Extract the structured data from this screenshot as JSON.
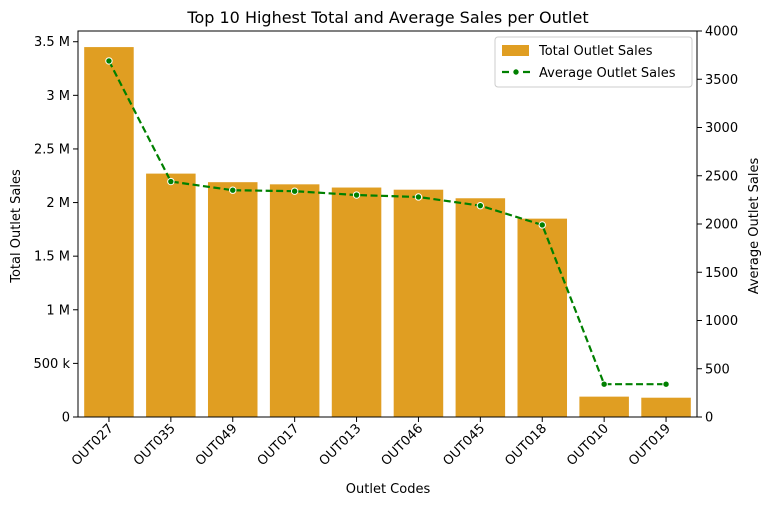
{
  "chart_data": {
    "type": "bar",
    "title": "Top 10 Highest Total and Average Sales per Outlet",
    "xlabel": "Outlet Codes",
    "ylabel": "Total Outlet Sales",
    "y2label": "Average Outlet Sales",
    "categories": [
      "OUT027",
      "OUT035",
      "OUT049",
      "OUT017",
      "OUT013",
      "OUT046",
      "OUT045",
      "OUT018",
      "OUT010",
      "OUT019"
    ],
    "ylim": [
      0,
      3600000
    ],
    "y2lim": [
      0,
      4000
    ],
    "y_ticks": [
      {
        "value": 0,
        "label": "0"
      },
      {
        "value": 500000,
        "label": "500 k"
      },
      {
        "value": 1000000,
        "label": "1 M"
      },
      {
        "value": 1500000,
        "label": "1.5 M"
      },
      {
        "value": 2000000,
        "label": "2 M"
      },
      {
        "value": 2500000,
        "label": "2.5 M"
      },
      {
        "value": 3000000,
        "label": "3 M"
      },
      {
        "value": 3500000,
        "label": "3.5 M"
      }
    ],
    "y2_ticks": [
      {
        "value": 0,
        "label": "0"
      },
      {
        "value": 500,
        "label": "500"
      },
      {
        "value": 1000,
        "label": "1000"
      },
      {
        "value": 1500,
        "label": "1500"
      },
      {
        "value": 2000,
        "label": "2000"
      },
      {
        "value": 2500,
        "label": "2500"
      },
      {
        "value": 3000,
        "label": "3000"
      },
      {
        "value": 3500,
        "label": "3500"
      },
      {
        "value": 4000,
        "label": "4000"
      }
    ],
    "series": [
      {
        "name": "Total Outlet Sales",
        "type": "bar",
        "axis": "left",
        "color": "#e09e22",
        "values": [
          3450000,
          2270000,
          2190000,
          2170000,
          2140000,
          2120000,
          2040000,
          1850000,
          190000,
          180000
        ]
      },
      {
        "name": "Average Outlet Sales",
        "type": "line",
        "axis": "right",
        "color": "#008000",
        "line_style": "dashed",
        "marker": "circle",
        "values": [
          3690,
          2440,
          2350,
          2340,
          2300,
          2280,
          2190,
          1990,
          340,
          340
        ]
      }
    ],
    "legend": {
      "position": "top-right"
    },
    "grid": false
  }
}
